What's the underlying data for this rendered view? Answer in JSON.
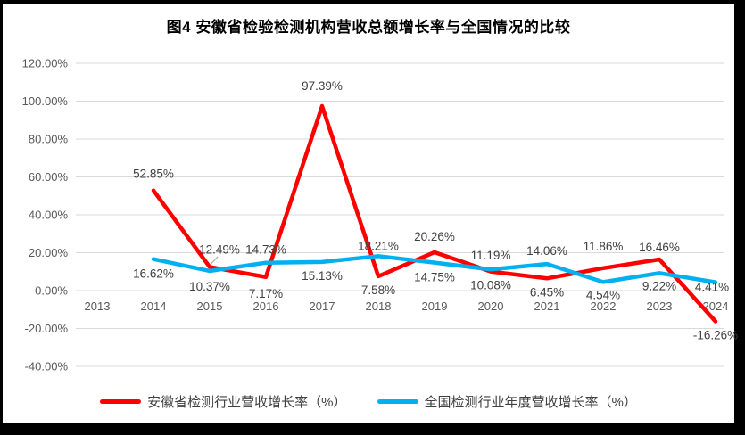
{
  "chart_data": {
    "type": "line",
    "title": "图4 安徽省检验检测机构营收总额增长率与全国情况的比较",
    "categories": [
      "2013",
      "2014",
      "2015",
      "2016",
      "2017",
      "2018",
      "2019",
      "2020",
      "2021",
      "2022",
      "2023",
      "2024"
    ],
    "y_ticks": [
      "120.00%",
      "100.00%",
      "80.00%",
      "60.00%",
      "40.00%",
      "20.00%",
      "0.00%",
      "-20.00%",
      "-40.00%"
    ],
    "ylim": [
      -40,
      120
    ],
    "y_step": 20,
    "grid": true,
    "label_format": "0.00%",
    "legend_position": "bottom",
    "series": [
      {
        "name": "安徽省检测行业营收增长率（%）",
        "color": "#FF0000",
        "values": [
          null,
          52.85,
          12.49,
          7.17,
          97.39,
          7.58,
          20.26,
          10.08,
          6.45,
          11.86,
          16.46,
          -16.26
        ]
      },
      {
        "name": "全国检测行业年度营收增长率（%）",
        "color": "#00B0F0",
        "values": [
          null,
          16.62,
          10.37,
          14.73,
          15.13,
          18.21,
          14.75,
          11.19,
          14.06,
          4.54,
          9.22,
          4.41
        ]
      }
    ],
    "colors": {
      "gridline": "#D9D9D9",
      "axis_text": "#595959",
      "data_label": "#3F3F3F",
      "leader_line": "#A6A6A6",
      "frame": "#000000",
      "background": "#FFFFFF"
    }
  }
}
